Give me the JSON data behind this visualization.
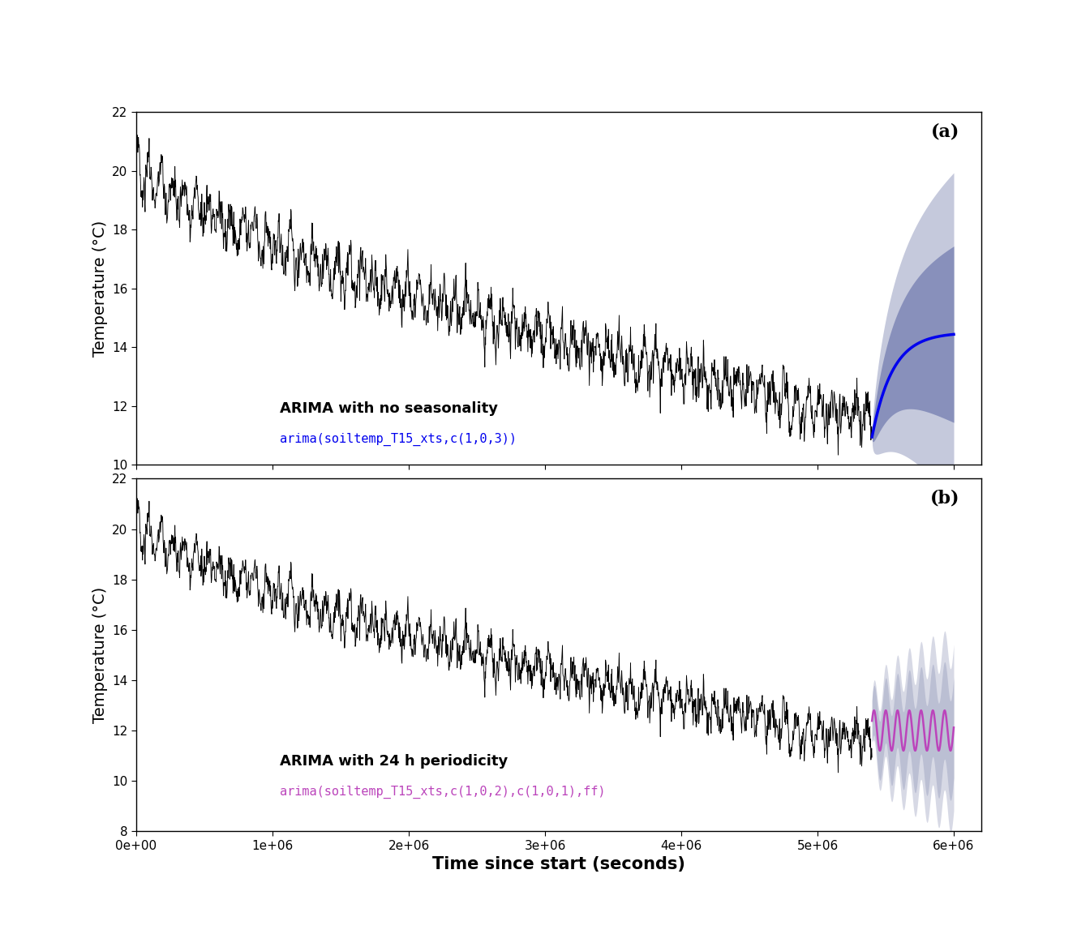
{
  "title_a": "(a)",
  "title_b": "(b)",
  "ylabel": "Temperature (°C)",
  "xlabel": "Time since start (seconds)",
  "label_a_bold": "ARIMA with no seasonality",
  "label_a_code": "arima(soiltemp_T15_xts,c(1,0,3))",
  "label_b_bold": "ARIMA with 24 h periodicity",
  "label_b_code": "arima(soiltemp_T15_xts,c(1,0,2),c(1,0,1),ff)",
  "xlim": [
    0,
    6200000
  ],
  "ylim_a": [
    10,
    22
  ],
  "ylim_b": [
    8,
    22
  ],
  "yticks_a": [
    10,
    12,
    14,
    16,
    18,
    20,
    22
  ],
  "yticks_b": [
    8,
    10,
    12,
    14,
    16,
    18,
    20,
    22
  ],
  "xticks": [
    0,
    1000000,
    2000000,
    3000000,
    4000000,
    5000000,
    6000000
  ],
  "forecast_start": 5400000,
  "forecast_end": 6000000,
  "blue_color": "#0000EE",
  "purple_color": "#BB44BB",
  "ci80_color_a": "#8890BB",
  "ci95_color_a": "#C5C9DC",
  "ci_color_b": "#B0B4CC",
  "seed": 42
}
